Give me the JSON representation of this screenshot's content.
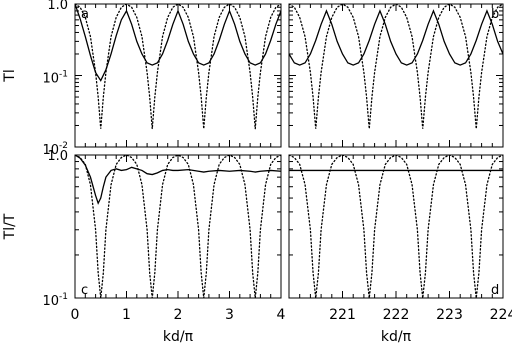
{
  "chart_data": [
    {
      "type": "line",
      "panel_label": "a",
      "ylabel": "Tl",
      "yscale": "log",
      "xlim": [
        0,
        4
      ],
      "ylim": [
        0.01,
        1.0
      ],
      "yticks": [
        "1.0",
        "10<sup>-1</sup>",
        "10<sup>-2</sup>"
      ],
      "ytick_labels": [
        {
          "base": "1.0",
          "exp": ""
        },
        {
          "base": "10",
          "exp": "-1"
        },
        {
          "base": "10",
          "exp": "-2"
        }
      ],
      "series": [
        {
          "style": "solid",
          "x": [
            0.0,
            0.1,
            0.2,
            0.3,
            0.4,
            0.5,
            0.6,
            0.7,
            0.8,
            0.9,
            1.0,
            1.1,
            1.2,
            1.3,
            1.4,
            1.5,
            1.6,
            1.7,
            1.8,
            1.9,
            2.0,
            2.1,
            2.2,
            2.3,
            2.4,
            2.5,
            2.6,
            2.7,
            2.8,
            2.9,
            3.0,
            3.1,
            3.2,
            3.3,
            3.4,
            3.5,
            3.6,
            3.7,
            3.8,
            3.9,
            4.0
          ],
          "y": [
            1.0,
            0.62,
            0.35,
            0.19,
            0.11,
            0.085,
            0.12,
            0.2,
            0.36,
            0.6,
            0.8,
            0.52,
            0.3,
            0.2,
            0.15,
            0.14,
            0.15,
            0.2,
            0.31,
            0.52,
            0.8,
            0.52,
            0.3,
            0.2,
            0.15,
            0.14,
            0.15,
            0.2,
            0.31,
            0.52,
            0.8,
            0.52,
            0.3,
            0.2,
            0.15,
            0.14,
            0.15,
            0.2,
            0.31,
            0.52,
            0.8
          ]
        },
        {
          "style": "dotted",
          "x": [
            0.0,
            0.1,
            0.2,
            0.3,
            0.4,
            0.45,
            0.5,
            0.55,
            0.6,
            0.7,
            0.8,
            0.9,
            1.0,
            1.1,
            1.2,
            1.3,
            1.4,
            1.45,
            1.5,
            1.55,
            1.6,
            1.7,
            1.8,
            1.9,
            2.0,
            2.1,
            2.2,
            2.3,
            2.4,
            2.45,
            2.5,
            2.55,
            2.6,
            2.7,
            2.8,
            2.9,
            3.0,
            3.1,
            3.2,
            3.3,
            3.4,
            3.45,
            3.5,
            3.55,
            3.6,
            3.7,
            3.8,
            3.9,
            4.0
          ],
          "y": [
            1.0,
            0.9,
            0.65,
            0.35,
            0.11,
            0.05,
            0.018,
            0.05,
            0.11,
            0.35,
            0.65,
            0.9,
            1.0,
            0.9,
            0.65,
            0.35,
            0.11,
            0.05,
            0.018,
            0.05,
            0.11,
            0.35,
            0.65,
            0.9,
            1.0,
            0.9,
            0.65,
            0.35,
            0.11,
            0.05,
            0.018,
            0.05,
            0.11,
            0.35,
            0.65,
            0.9,
            1.0,
            0.9,
            0.65,
            0.35,
            0.11,
            0.05,
            0.018,
            0.05,
            0.11,
            0.35,
            0.65,
            0.9,
            1.0
          ]
        }
      ]
    },
    {
      "type": "line",
      "panel_label": "b",
      "yscale": "log",
      "xlim": [
        220,
        224
      ],
      "ylim": [
        0.01,
        1.0
      ],
      "series": [
        {
          "style": "solid",
          "x": [
            220.0,
            220.1,
            220.2,
            220.3,
            220.4,
            220.5,
            220.6,
            220.7,
            220.8,
            220.9,
            221.0,
            221.1,
            221.2,
            221.3,
            221.4,
            221.5,
            221.6,
            221.7,
            221.8,
            221.9,
            222.0,
            222.1,
            222.2,
            222.3,
            222.4,
            222.5,
            222.6,
            222.7,
            222.8,
            222.9,
            223.0,
            223.1,
            223.2,
            223.3,
            223.4,
            223.5,
            223.6,
            223.7,
            223.8,
            223.9,
            224.0
          ],
          "y": [
            0.2,
            0.15,
            0.14,
            0.15,
            0.2,
            0.31,
            0.52,
            0.8,
            0.52,
            0.3,
            0.2,
            0.15,
            0.14,
            0.15,
            0.2,
            0.31,
            0.52,
            0.8,
            0.52,
            0.3,
            0.2,
            0.15,
            0.14,
            0.15,
            0.2,
            0.31,
            0.52,
            0.8,
            0.52,
            0.3,
            0.2,
            0.15,
            0.14,
            0.15,
            0.2,
            0.31,
            0.52,
            0.8,
            0.52,
            0.3,
            0.2
          ]
        },
        {
          "style": "dotted",
          "x": [
            220.0,
            220.1,
            220.2,
            220.3,
            220.4,
            220.45,
            220.5,
            220.55,
            220.6,
            220.7,
            220.8,
            220.9,
            221.0,
            221.1,
            221.2,
            221.3,
            221.4,
            221.45,
            221.5,
            221.55,
            221.6,
            221.7,
            221.8,
            221.9,
            222.0,
            222.1,
            222.2,
            222.3,
            222.4,
            222.45,
            222.5,
            222.55,
            222.6,
            222.7,
            222.8,
            222.9,
            223.0,
            223.1,
            223.2,
            223.3,
            223.4,
            223.45,
            223.5,
            223.55,
            223.6,
            223.7,
            223.8,
            223.9,
            224.0
          ],
          "y": [
            1.0,
            0.9,
            0.65,
            0.35,
            0.11,
            0.05,
            0.018,
            0.05,
            0.11,
            0.35,
            0.65,
            0.9,
            1.0,
            0.9,
            0.65,
            0.35,
            0.11,
            0.05,
            0.018,
            0.05,
            0.11,
            0.35,
            0.65,
            0.9,
            1.0,
            0.9,
            0.65,
            0.35,
            0.11,
            0.05,
            0.018,
            0.05,
            0.11,
            0.35,
            0.65,
            0.9,
            1.0,
            0.9,
            0.65,
            0.35,
            0.11,
            0.05,
            0.018,
            0.05,
            0.11,
            0.35,
            0.65,
            0.9,
            1.0
          ]
        }
      ]
    },
    {
      "type": "line",
      "panel_label": "c",
      "ylabel": "Tl/T",
      "xlabel": "kd/π",
      "yscale": "log",
      "xlim": [
        0,
        4
      ],
      "ylim": [
        0.1,
        1.0
      ],
      "xticks": [
        "0",
        "1",
        "2",
        "3",
        "4"
      ],
      "ytick_labels": [
        {
          "base": "1.0",
          "exp": ""
        },
        {
          "base": "10",
          "exp": "-1"
        }
      ],
      "series": [
        {
          "style": "solid",
          "x": [
            0.0,
            0.1,
            0.2,
            0.3,
            0.4,
            0.45,
            0.5,
            0.55,
            0.6,
            0.7,
            0.8,
            0.9,
            1.0,
            1.1,
            1.2,
            1.3,
            1.4,
            1.5,
            1.6,
            1.7,
            1.8,
            1.9,
            2.0,
            2.2,
            2.4,
            2.5,
            2.6,
            2.8,
            3.0,
            3.2,
            3.4,
            3.5,
            3.6,
            3.8,
            4.0
          ],
          "y": [
            1.0,
            0.95,
            0.85,
            0.7,
            0.52,
            0.46,
            0.5,
            0.6,
            0.7,
            0.78,
            0.8,
            0.78,
            0.79,
            0.82,
            0.8,
            0.78,
            0.74,
            0.73,
            0.75,
            0.78,
            0.79,
            0.78,
            0.78,
            0.79,
            0.77,
            0.76,
            0.77,
            0.78,
            0.77,
            0.78,
            0.77,
            0.76,
            0.77,
            0.78,
            0.77
          ]
        },
        {
          "style": "dotted",
          "x": [
            0.0,
            0.1,
            0.2,
            0.3,
            0.4,
            0.45,
            0.5,
            0.55,
            0.6,
            0.7,
            0.8,
            0.9,
            1.0,
            1.1,
            1.2,
            1.3,
            1.4,
            1.45,
            1.5,
            1.55,
            1.6,
            1.7,
            1.8,
            1.9,
            2.0,
            2.1,
            2.2,
            2.3,
            2.4,
            2.45,
            2.5,
            2.55,
            2.6,
            2.7,
            2.8,
            2.9,
            3.0,
            3.1,
            3.2,
            3.3,
            3.4,
            3.45,
            3.5,
            3.55,
            3.6,
            3.7,
            3.8,
            3.9,
            4.0
          ],
          "y": [
            1.0,
            0.96,
            0.86,
            0.62,
            0.3,
            0.15,
            0.1,
            0.15,
            0.3,
            0.62,
            0.86,
            0.96,
            1.0,
            0.96,
            0.86,
            0.62,
            0.3,
            0.15,
            0.1,
            0.15,
            0.3,
            0.62,
            0.86,
            0.96,
            1.0,
            0.96,
            0.86,
            0.62,
            0.3,
            0.15,
            0.1,
            0.15,
            0.3,
            0.62,
            0.86,
            0.96,
            1.0,
            0.96,
            0.86,
            0.62,
            0.3,
            0.15,
            0.1,
            0.15,
            0.3,
            0.62,
            0.86,
            0.96,
            1.0
          ]
        }
      ]
    },
    {
      "type": "line",
      "panel_label": "d",
      "xlabel": "kd/π",
      "yscale": "log",
      "xlim": [
        220,
        224
      ],
      "ylim": [
        0.1,
        1.0
      ],
      "xticks": [
        "221",
        "222",
        "223",
        "224"
      ],
      "series": [
        {
          "style": "solid",
          "x": [
            220.0,
            224.0
          ],
          "y": [
            0.78,
            0.78
          ]
        },
        {
          "style": "dotted",
          "x": [
            220.0,
            220.1,
            220.2,
            220.3,
            220.4,
            220.45,
            220.5,
            220.55,
            220.6,
            220.7,
            220.8,
            220.9,
            221.0,
            221.1,
            221.2,
            221.3,
            221.4,
            221.45,
            221.5,
            221.55,
            221.6,
            221.7,
            221.8,
            221.9,
            222.0,
            222.1,
            222.2,
            222.3,
            222.4,
            222.45,
            222.5,
            222.55,
            222.6,
            222.7,
            222.8,
            222.9,
            223.0,
            223.1,
            223.2,
            223.3,
            223.4,
            223.45,
            223.5,
            223.55,
            223.6,
            223.7,
            223.8,
            223.9,
            224.0
          ],
          "y": [
            1.0,
            0.96,
            0.86,
            0.62,
            0.3,
            0.15,
            0.1,
            0.15,
            0.3,
            0.62,
            0.86,
            0.96,
            1.0,
            0.96,
            0.86,
            0.62,
            0.3,
            0.15,
            0.1,
            0.15,
            0.3,
            0.62,
            0.86,
            0.96,
            1.0,
            0.96,
            0.86,
            0.62,
            0.3,
            0.15,
            0.1,
            0.15,
            0.3,
            0.62,
            0.86,
            0.96,
            1.0,
            0.96,
            0.86,
            0.62,
            0.3,
            0.15,
            0.1,
            0.15,
            0.3,
            0.62,
            0.86,
            0.96,
            1.0
          ]
        }
      ]
    }
  ]
}
